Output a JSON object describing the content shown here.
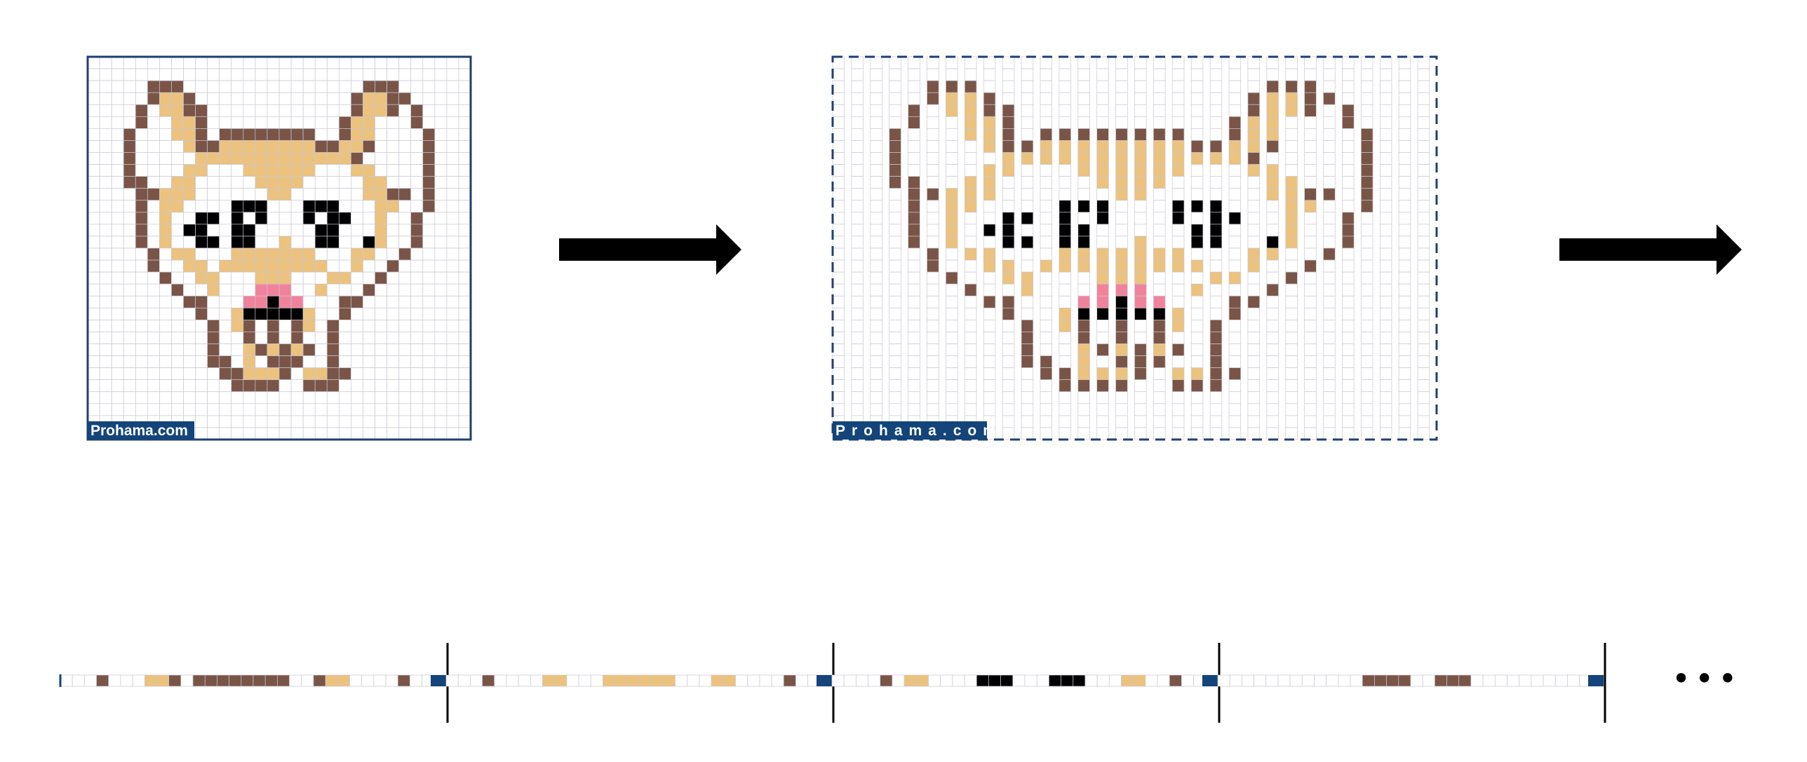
{
  "watermark": "Prohama.com",
  "ellipsis": "•••",
  "colors": {
    "outline": "#7a5547",
    "tan": "#ecc27f",
    "eye": "#000000",
    "pink": "#f1829b",
    "grid": "#c8c8d2",
    "frame": "#1f3f73",
    "badge": "#13447a",
    "arrow": "#000000"
  },
  "pixel_art": {
    "size": 32,
    "legend": {
      ".": "white",
      "o": "outline",
      "t": "tan",
      "k": "eye",
      "p": "pink"
    },
    "rows": [
      "................................",
      "................................",
      ".....ooo...............ooo......",
      ".....otto.............ottoo.....",
      "....o.ttoo............otto.o....",
      "....o..tto...........ott...o....",
      "...o...tto.oooooooo..ott....o...",
      "...o....toottttttttootto....o...",
      "...o.....ttttttttttttto.....o...",
      "...o....tt...tttttt...tt....o...",
      "...oo..tt.....tttt.....tt...o...",
      "....oottt......tt......ttoo.o...",
      "....o.tt....kkk...kkk...tt..o...",
      "....o.t..kk.k.k...k.kk..t..o....",
      "....o.t.kk..kk.....kk...t..o....",
      "....o.t..kk.kk..t..kk..kt..o....",
      ".....o.tt...ttttttt...tt..o.....",
      ".....o..tt.ttttttttt..t..o......",
      "......o..tt...ttt...tt..o.......",
      ".......o..t...ppp..t...o........",
      "........oo...ppkpp...oo.........",
      ".........o..tkkkkkt..o..........",
      "..........o.to.o.ot.o...........",
      "..........o..o.o.o..o...........",
      "..........o..tototo.o...........",
      "..........oo.t.ooo..o...........",
      "...........oottto.ttoo..........",
      "............oooo..ooo...........",
      "................................",
      "................................",
      "................................",
      "................................"
    ]
  }
}
